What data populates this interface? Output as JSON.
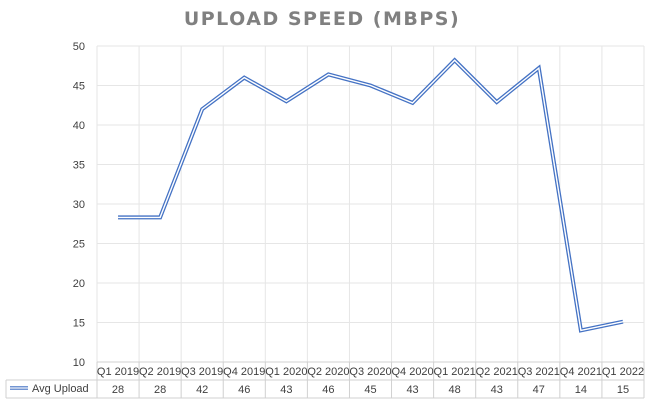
{
  "chart_data": {
    "type": "line",
    "title": "UPLOAD SPEED (MBPS)",
    "categories": [
      "Q1 2019",
      "Q2 2019",
      "Q3 2019",
      "Q4 2019",
      "Q1 2020",
      "Q2 2020",
      "Q3 2020",
      "Q4 2020",
      "Q1 2021",
      "Q2 2021",
      "Q3 2021",
      "Q4 2021",
      "Q1 2022"
    ],
    "series": [
      {
        "name": "Avg Upload",
        "values": [
          28.3,
          28.3,
          42,
          46,
          43,
          46.4,
          45,
          42.8,
          48.2,
          42.9,
          47.2,
          14,
          15.1
        ],
        "table_labels": [
          "28",
          "28",
          "42",
          "46",
          "43",
          "46",
          "45",
          "43",
          "48",
          "43",
          "47",
          "14",
          "15"
        ],
        "color": "#4472c4"
      }
    ],
    "ylim": [
      10,
      50
    ],
    "yticks": [
      "10",
      "15",
      "20",
      "25",
      "30",
      "35",
      "40",
      "45",
      "50"
    ],
    "grid": true,
    "legend_position": "data-table-left",
    "data_table": true
  }
}
